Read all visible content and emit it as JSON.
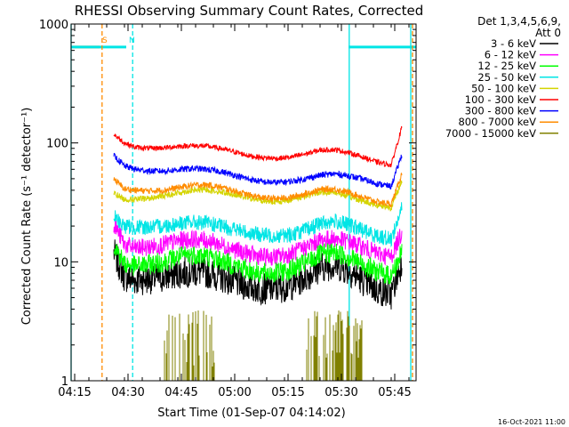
{
  "chart_data": {
    "type": "line",
    "title": "RHESSI Observing Summary Count Rates, Corrected",
    "xlabel": "Start Time (01-Sep-07 04:14:02)",
    "ylabel": "Corrected Count Rate (s⁻¹ detector⁻¹)",
    "y_scale": "log",
    "ylim": [
      1,
      1000
    ],
    "xlim_minutes": [
      0,
      97
    ],
    "x_tick_labels": [
      "04:15",
      "04:30",
      "04:45",
      "05:00",
      "05:15",
      "05:30",
      "05:45"
    ],
    "x_tick_minutes": [
      1,
      16,
      31,
      46,
      61,
      76,
      91
    ],
    "y_tick_labels": [
      "1",
      "10",
      "100",
      "1000"
    ],
    "y_tick_values": [
      1,
      10,
      100,
      1000
    ],
    "legend_header": [
      "Det 1,3,4,5,6,9,",
      "Att 0"
    ],
    "legend_position": "right",
    "footer": "16-Oct-2021 11:00",
    "time_minutes": [
      12,
      15,
      18,
      22,
      26,
      30,
      34,
      38,
      42,
      46,
      50,
      54,
      58,
      62,
      66,
      70,
      74,
      78,
      82,
      86,
      90,
      93
    ],
    "series": [
      {
        "name": "3 - 6 keV",
        "color": "#000000",
        "noise": 0.06,
        "values": [
          12,
          7.5,
          7,
          7.2,
          7.4,
          8,
          8.3,
          8.1,
          7.5,
          6.8,
          6.2,
          5.9,
          6,
          6.4,
          7.5,
          9,
          9.5,
          8.5,
          7,
          5.8,
          5.3,
          10
        ]
      },
      {
        "name": "6 - 12 keV",
        "color": "#ff00ff",
        "noise": 0.035,
        "values": [
          21,
          14,
          13,
          13.3,
          14,
          15,
          15.5,
          15.2,
          14,
          12.7,
          11.6,
          11,
          11,
          11.7,
          13.3,
          15.2,
          15.7,
          14.8,
          13.3,
          11.8,
          11,
          18
        ]
      },
      {
        "name": "12 - 25 keV",
        "color": "#00ff00",
        "noise": 0.04,
        "values": [
          14,
          9.6,
          9.2,
          9.5,
          10,
          11,
          11.5,
          11.2,
          10.3,
          9.3,
          8.5,
          8,
          8.1,
          8.6,
          9.8,
          11.5,
          12,
          11,
          9.5,
          8.3,
          7.6,
          12
        ]
      },
      {
        "name": "25 - 50 keV",
        "color": "#00e5e5",
        "noise": 0.03,
        "values": [
          24,
          20,
          19.5,
          19.6,
          20,
          21,
          21.5,
          21.2,
          20,
          18.8,
          17.5,
          16.8,
          16.6,
          17,
          18.5,
          21,
          22,
          20.5,
          18.5,
          16.5,
          15.5,
          28
        ]
      },
      {
        "name": "50 - 100 keV",
        "color": "#d4d400",
        "noise": 0.012,
        "values": [
          38,
          33.5,
          33.5,
          34.2,
          36,
          38,
          40,
          40.5,
          39,
          37,
          34.5,
          32.5,
          32,
          33.5,
          36,
          38.5,
          38.5,
          35.5,
          32.5,
          30,
          28.5,
          48
        ]
      },
      {
        "name": "100 - 300 keV",
        "color": "#ff0000",
        "noise": 0.01,
        "values": [
          118,
          100,
          92,
          90,
          91,
          93.5,
          95,
          94,
          90,
          84,
          78,
          75,
          74,
          76,
          81,
          87,
          88,
          83,
          76,
          69,
          65,
          135
        ]
      },
      {
        "name": "300 - 800 keV",
        "color": "#0000ff",
        "noise": 0.012,
        "values": [
          78,
          64,
          60,
          58,
          58,
          59.5,
          61,
          60,
          57.5,
          53.5,
          49.5,
          47,
          46.5,
          47.5,
          50,
          53.5,
          55,
          53,
          49.5,
          45.5,
          43,
          80
        ]
      },
      {
        "name": "800 - 7000 keV",
        "color": "#ff8c00",
        "noise": 0.012,
        "values": [
          50,
          41,
          40,
          39.5,
          40,
          42,
          44,
          44.5,
          42.5,
          39.5,
          36.5,
          34.5,
          34,
          35,
          37.5,
          40.5,
          41,
          38.5,
          35,
          32,
          30.5,
          55
        ]
      },
      {
        "name": "7000 - 15000 keV",
        "color": "#808000",
        "noise": 0,
        "values": [
          1,
          1,
          1,
          1,
          1,
          1,
          1,
          1,
          1,
          1,
          1,
          1,
          1,
          1,
          1,
          1,
          1,
          1,
          1,
          1,
          1,
          1
        ]
      }
    ],
    "status_bars": [
      {
        "label": "S",
        "color": "#ff8c00",
        "start_minute": 0.5,
        "end_minute": 8
      },
      {
        "label": "N",
        "color": "#00e5e5",
        "start_minute": 0,
        "end_minute": 15.5
      },
      {
        "label": "",
        "color": "#00e5e5",
        "start_minute": 78,
        "end_minute": 97
      }
    ],
    "status_level": 640,
    "markers": [
      {
        "minute": 0,
        "color": "#00e5e5",
        "style": "solid"
      },
      {
        "minute": 8.7,
        "color": "#ff8c00",
        "style": "dashed"
      },
      {
        "minute": 17.3,
        "color": "#00e5e5",
        "style": "dashed"
      },
      {
        "minute": 78.2,
        "color": "#00e5e5",
        "style": "solid"
      },
      {
        "minute": 95.5,
        "color": "#00e5e5",
        "style": "solid"
      },
      {
        "minute": 96,
        "color": "#ff8c00",
        "style": "dashed"
      }
    ]
  }
}
